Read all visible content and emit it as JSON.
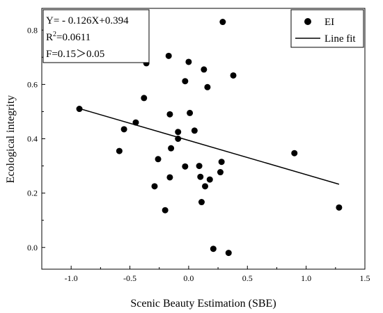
{
  "chart_data": {
    "type": "scatter",
    "xlabel": "Scenic Beauty Estimation (SBE)",
    "ylabel": "Ecological integrity",
    "xlim": [
      -1.25,
      1.5
    ],
    "ylim": [
      -0.08,
      0.88
    ],
    "x_ticks": [
      -1.0,
      -0.5,
      0.0,
      0.5,
      1.0,
      1.5
    ],
    "y_ticks": [
      0.0,
      0.2,
      0.4,
      0.6,
      0.8
    ],
    "x_tick_labels": [
      "-1.0",
      "-0.5",
      "0.0",
      "0.5",
      "1.0",
      "1.5"
    ],
    "y_tick_labels": [
      "0.0",
      "0.2",
      "0.4",
      "0.6",
      "0.8"
    ],
    "series": [
      {
        "name": "EI",
        "points": [
          {
            "x": -0.93,
            "y": 0.51
          },
          {
            "x": -0.59,
            "y": 0.355
          },
          {
            "x": -0.55,
            "y": 0.435
          },
          {
            "x": -0.45,
            "y": 0.46
          },
          {
            "x": -0.38,
            "y": 0.55
          },
          {
            "x": -0.36,
            "y": 0.678
          },
          {
            "x": -0.29,
            "y": 0.225
          },
          {
            "x": -0.26,
            "y": 0.325
          },
          {
            "x": -0.2,
            "y": 0.137
          },
          {
            "x": -0.17,
            "y": 0.705
          },
          {
            "x": -0.16,
            "y": 0.49
          },
          {
            "x": -0.16,
            "y": 0.258
          },
          {
            "x": -0.15,
            "y": 0.365
          },
          {
            "x": -0.09,
            "y": 0.425
          },
          {
            "x": -0.09,
            "y": 0.4
          },
          {
            "x": -0.03,
            "y": 0.298
          },
          {
            "x": -0.03,
            "y": 0.612
          },
          {
            "x": 0.0,
            "y": 0.683
          },
          {
            "x": 0.01,
            "y": 0.495
          },
          {
            "x": 0.05,
            "y": 0.43
          },
          {
            "x": 0.09,
            "y": 0.3
          },
          {
            "x": 0.1,
            "y": 0.26
          },
          {
            "x": 0.11,
            "y": 0.167
          },
          {
            "x": 0.13,
            "y": 0.655
          },
          {
            "x": 0.14,
            "y": 0.225
          },
          {
            "x": 0.16,
            "y": 0.59
          },
          {
            "x": 0.18,
            "y": 0.25
          },
          {
            "x": 0.21,
            "y": -0.005
          },
          {
            "x": 0.27,
            "y": 0.277
          },
          {
            "x": 0.28,
            "y": 0.315
          },
          {
            "x": 0.29,
            "y": 0.83
          },
          {
            "x": 0.34,
            "y": -0.02
          },
          {
            "x": 0.38,
            "y": 0.633
          },
          {
            "x": 0.9,
            "y": 0.347
          },
          {
            "x": 1.28,
            "y": 0.147
          }
        ]
      }
    ],
    "fit_line": {
      "name": "Line fit",
      "slope": -0.126,
      "intercept": 0.394,
      "x_range": [
        -0.93,
        1.28
      ]
    },
    "stats_box": {
      "line1": "Y= - 0.126X+0.394",
      "line2_prefix": "R",
      "line2_sup": "2",
      "line2_suffix": "=0.0611",
      "line3": "F=0.15＞0.05"
    },
    "legend": {
      "position": "top-right",
      "entries": [
        "EI",
        "Line fit"
      ]
    },
    "grid": false
  }
}
